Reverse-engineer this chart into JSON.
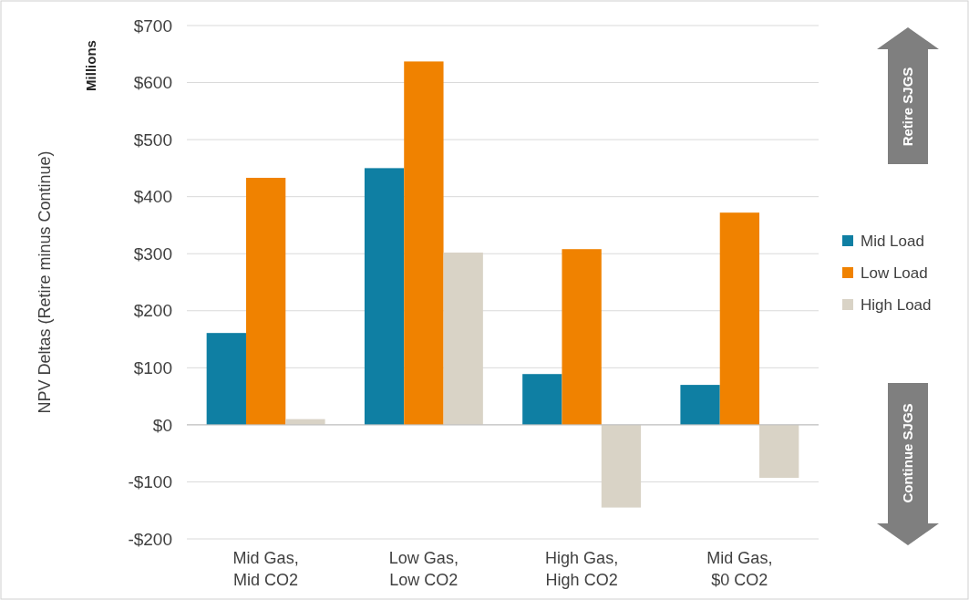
{
  "chart_data": {
    "type": "bar",
    "ylabel": "NPV Deltas (Retire minus Continue)",
    "categories": [
      "Mid Gas, Mid CO2",
      "Low Gas, Low CO2",
      "High Gas, High CO2",
      "Mid Gas, $0 CO2"
    ],
    "series": [
      {
        "name": "Mid Load",
        "color": "#0f7fa3",
        "values": [
          161,
          450,
          89,
          70
        ]
      },
      {
        "name": "Low Load",
        "color": "#f08200",
        "values": [
          433,
          637,
          308,
          372
        ]
      },
      {
        "name": "High Load",
        "color": "#d9d3c6",
        "values": [
          10,
          302,
          -145,
          -93
        ]
      }
    ],
    "ylim": [
      -200,
      700
    ],
    "yticks": [
      {
        "value": -200,
        "label": "-$200"
      },
      {
        "value": -100,
        "label": "-$100"
      },
      {
        "value": 0,
        "label": "$0"
      },
      {
        "value": 100,
        "label": "$100"
      },
      {
        "value": 200,
        "label": "$200"
      },
      {
        "value": 300,
        "label": "$300"
      },
      {
        "value": 400,
        "label": "$400"
      },
      {
        "value": 500,
        "label": "$500"
      },
      {
        "value": 600,
        "label": "$600"
      },
      {
        "value": 700,
        "label": "$700"
      }
    ],
    "grid": "y",
    "legend": "right",
    "annotations": [
      "Millions",
      "Retire SJGS",
      "Continue SJGS"
    ]
  }
}
